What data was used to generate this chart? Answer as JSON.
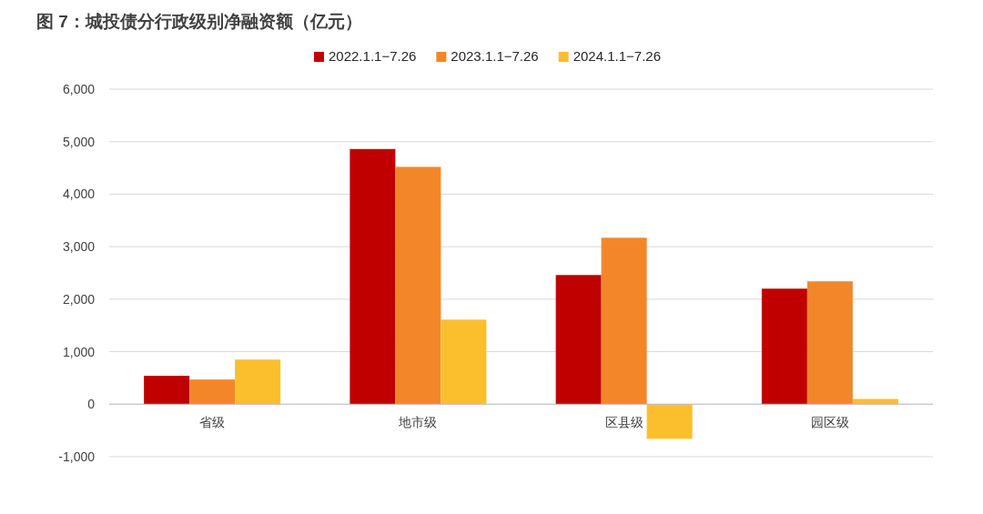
{
  "chart_data": {
    "type": "bar",
    "title": "图 7：城投债分行政级别净融资额（亿元）",
    "categories": [
      "省级",
      "地市级",
      "区县级",
      "园区级"
    ],
    "series": [
      {
        "name": "2022.1.1−7.26",
        "color": "#c00000",
        "values": [
          540,
          4860,
          2460,
          2200
        ]
      },
      {
        "name": "2023.1.1−7.26",
        "color": "#f4862a",
        "values": [
          470,
          4520,
          3170,
          2340
        ]
      },
      {
        "name": "2024.1.1−7.26",
        "color": "#fbbf2e",
        "values": [
          850,
          1610,
          -660,
          100
        ]
      }
    ],
    "ylim": [
      -1000,
      6000
    ],
    "yticks": [
      {
        "value": -1000,
        "label": "-1,000"
      },
      0,
      {
        "value": 1000,
        "label": "1,000"
      },
      {
        "value": 2000,
        "label": "2,000"
      },
      {
        "value": 3000,
        "label": "3,000"
      },
      {
        "value": 4000,
        "label": "4,000"
      },
      {
        "value": 5000,
        "label": "5,000"
      },
      {
        "value": 6000,
        "label": "6,000"
      }
    ],
    "grid": "y",
    "legend": "top"
  }
}
